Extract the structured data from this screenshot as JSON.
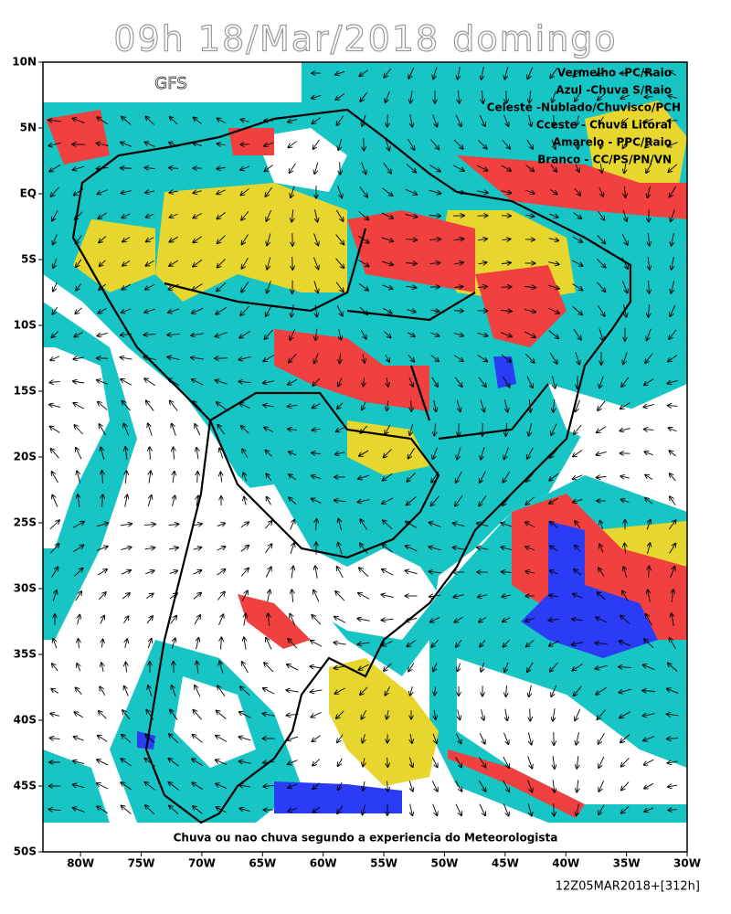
{
  "map": {
    "title": "09h 18/Mar/2018 domingo",
    "model_label": "GFS",
    "legend": [
      "Vermelho -PC/Raio",
      "Azul -Chuva S/Raio",
      "Celeste -Nublado/Chuvisco/PCH",
      "Cceste - Chuva Litoral",
      "Amarelo - PPC/Raio",
      "Branco - CC/PS/PN/VN"
    ],
    "caption": "Chuva ou nao chuva segundo a experiencia do Meteorologista",
    "run_label": "12Z05MAR2018+[312h]",
    "xlim": [
      -83.1,
      -30
    ],
    "ylim": [
      -50,
      10
    ],
    "xticks": [
      {
        "value": -80,
        "label": "80W"
      },
      {
        "value": -75,
        "label": "75W"
      },
      {
        "value": -70,
        "label": "70W"
      },
      {
        "value": -65,
        "label": "65W"
      },
      {
        "value": -60,
        "label": "60W"
      },
      {
        "value": -55,
        "label": "55W"
      },
      {
        "value": -50,
        "label": "50W"
      },
      {
        "value": -45,
        "label": "45W"
      },
      {
        "value": -40,
        "label": "40W"
      },
      {
        "value": -35,
        "label": "35W"
      },
      {
        "value": -30,
        "label": "30W"
      }
    ],
    "yticks": [
      {
        "value": 10,
        "label": "10N"
      },
      {
        "value": 5,
        "label": "5N"
      },
      {
        "value": 0,
        "label": "EQ"
      },
      {
        "value": -5,
        "label": "5S"
      },
      {
        "value": -10,
        "label": "10S"
      },
      {
        "value": -15,
        "label": "15S"
      },
      {
        "value": -20,
        "label": "20S"
      },
      {
        "value": -25,
        "label": "25S"
      },
      {
        "value": -30,
        "label": "30S"
      },
      {
        "value": -35,
        "label": "35S"
      },
      {
        "value": -40,
        "label": "40S"
      },
      {
        "value": -45,
        "label": "45S"
      },
      {
        "value": -50,
        "label": "50S"
      }
    ]
  }
}
